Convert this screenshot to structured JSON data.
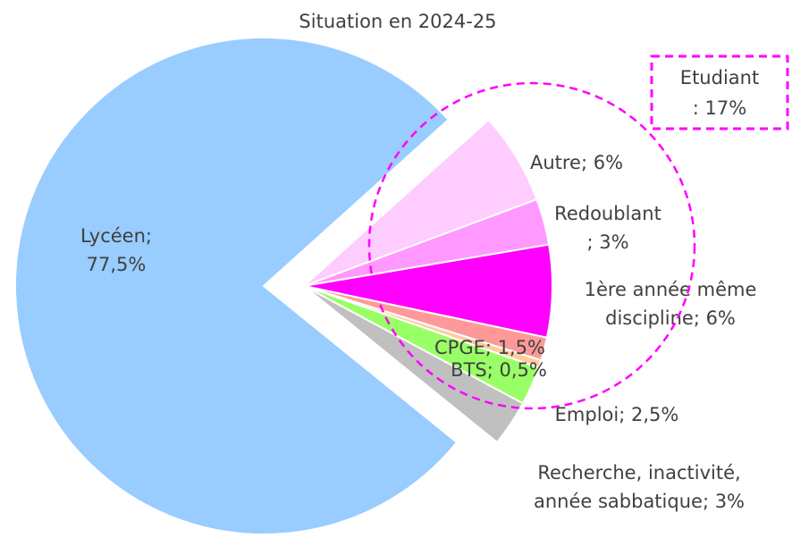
{
  "chart_data": {
    "type": "pie",
    "title": "Situation en 2024-25",
    "values": [
      77.5,
      6,
      3,
      6,
      1.5,
      0.5,
      2.5,
      3
    ],
    "value_labels": [
      [
        "Lycéen;",
        "77,5%"
      ],
      [
        "Autre; 6%"
      ],
      [
        "Redoublant",
        "; 3%"
      ],
      [
        "1ère année même",
        "discipline; 6%"
      ],
      [
        "CPGE; 1,5%"
      ],
      [
        "BTS; 0,5%"
      ],
      [
        "Emploi; 2,5%"
      ],
      [
        "Recherche, inactivité,",
        "année sabbatique; 3%"
      ]
    ],
    "colors": [
      "#99ccff",
      "#ffccff",
      "#ff99ff",
      "#ff00ff",
      "#ff9999",
      "#ffcc99",
      "#99ff66",
      "#c0c0c0"
    ],
    "annotation": [
      "Etudiant",
      ": 17%"
    ]
  }
}
